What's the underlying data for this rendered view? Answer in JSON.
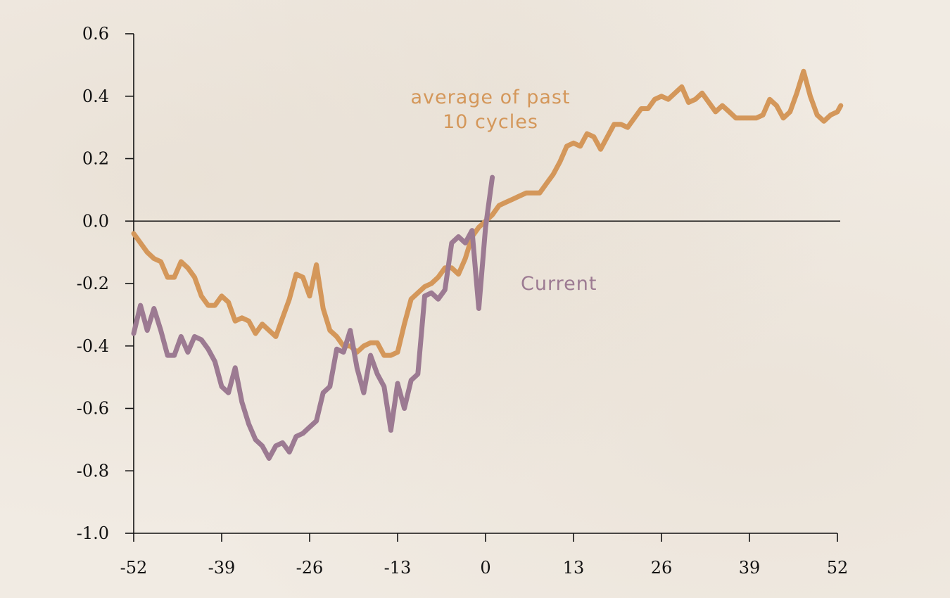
{
  "chart_data": {
    "type": "line",
    "title": "",
    "xlabel": "",
    "ylabel": "",
    "xlim": [
      -52,
      52
    ],
    "ylim": [
      -1.0,
      0.6
    ],
    "x_ticks": [
      "-52",
      "-39",
      "-26",
      "-13",
      "0",
      "13",
      "26",
      "39",
      "52"
    ],
    "y_ticks": [
      "0.6",
      "0.4",
      "0.2",
      "0.0",
      "-0.2",
      "-0.4",
      "-0.6",
      "-0.8",
      "-1.0"
    ],
    "series": [
      {
        "name": "average of past 10 cycles",
        "label_line1": "average of past",
        "label_line2": "10 cycles",
        "color": "#d4975a",
        "points": [
          [
            -52,
            -0.04
          ],
          [
            -51,
            -0.07
          ],
          [
            -50,
            -0.1
          ],
          [
            -49,
            -0.12
          ],
          [
            -48,
            -0.13
          ],
          [
            -47,
            -0.18
          ],
          [
            -46,
            -0.18
          ],
          [
            -45,
            -0.13
          ],
          [
            -44,
            -0.15
          ],
          [
            -43,
            -0.18
          ],
          [
            -42,
            -0.24
          ],
          [
            -41,
            -0.27
          ],
          [
            -40,
            -0.27
          ],
          [
            -39,
            -0.24
          ],
          [
            -38,
            -0.26
          ],
          [
            -37,
            -0.32
          ],
          [
            -36,
            -0.31
          ],
          [
            -35,
            -0.32
          ],
          [
            -34,
            -0.36
          ],
          [
            -33,
            -0.33
          ],
          [
            -32,
            -0.35
          ],
          [
            -31,
            -0.37
          ],
          [
            -30,
            -0.31
          ],
          [
            -29,
            -0.25
          ],
          [
            -28,
            -0.17
          ],
          [
            -27,
            -0.18
          ],
          [
            -26,
            -0.24
          ],
          [
            -25,
            -0.14
          ],
          [
            -24,
            -0.28
          ],
          [
            -23,
            -0.35
          ],
          [
            -22,
            -0.37
          ],
          [
            -21,
            -0.4
          ],
          [
            -20,
            -0.4
          ],
          [
            -19,
            -0.42
          ],
          [
            -18,
            -0.4
          ],
          [
            -17,
            -0.39
          ],
          [
            -16,
            -0.39
          ],
          [
            -15,
            -0.43
          ],
          [
            -14,
            -0.43
          ],
          [
            -13,
            -0.42
          ],
          [
            -12,
            -0.33
          ],
          [
            -11,
            -0.25
          ],
          [
            -10,
            -0.23
          ],
          [
            -9,
            -0.21
          ],
          [
            -8,
            -0.2
          ],
          [
            -7,
            -0.18
          ],
          [
            -6,
            -0.15
          ],
          [
            -5,
            -0.15
          ],
          [
            -4,
            -0.17
          ],
          [
            -3,
            -0.12
          ],
          [
            -2,
            -0.05
          ],
          [
            -1,
            -0.02
          ],
          [
            0,
            0.0
          ],
          [
            1,
            0.02
          ],
          [
            2,
            0.05
          ],
          [
            3,
            0.06
          ],
          [
            4,
            0.07
          ],
          [
            5,
            0.08
          ],
          [
            6,
            0.09
          ],
          [
            7,
            0.09
          ],
          [
            8,
            0.09
          ],
          [
            9,
            0.12
          ],
          [
            10,
            0.15
          ],
          [
            11,
            0.19
          ],
          [
            12,
            0.24
          ],
          [
            13,
            0.25
          ],
          [
            14,
            0.24
          ],
          [
            15,
            0.28
          ],
          [
            16,
            0.27
          ],
          [
            17,
            0.23
          ],
          [
            18,
            0.27
          ],
          [
            19,
            0.31
          ],
          [
            20,
            0.31
          ],
          [
            21,
            0.3
          ],
          [
            22,
            0.33
          ],
          [
            23,
            0.36
          ],
          [
            24,
            0.36
          ],
          [
            25,
            0.39
          ],
          [
            26,
            0.4
          ],
          [
            27,
            0.39
          ],
          [
            28,
            0.41
          ],
          [
            29,
            0.43
          ],
          [
            30,
            0.38
          ],
          [
            31,
            0.39
          ],
          [
            32,
            0.41
          ],
          [
            33,
            0.38
          ],
          [
            34,
            0.35
          ],
          [
            35,
            0.37
          ],
          [
            36,
            0.35
          ],
          [
            37,
            0.33
          ],
          [
            38,
            0.33
          ],
          [
            39,
            0.33
          ],
          [
            40,
            0.33
          ],
          [
            41,
            0.34
          ],
          [
            42,
            0.39
          ],
          [
            43,
            0.37
          ],
          [
            44,
            0.33
          ],
          [
            45,
            0.35
          ],
          [
            46,
            0.41
          ],
          [
            47,
            0.48
          ],
          [
            48,
            0.4
          ],
          [
            49,
            0.34
          ],
          [
            50,
            0.32
          ],
          [
            51,
            0.34
          ],
          [
            52,
            0.35
          ],
          [
            52.5,
            0.37
          ]
        ]
      },
      {
        "name": "Current",
        "label_line1": "Current",
        "color": "#9c7a92",
        "points": [
          [
            -52,
            -0.36
          ],
          [
            -51,
            -0.27
          ],
          [
            -50,
            -0.35
          ],
          [
            -49,
            -0.28
          ],
          [
            -48,
            -0.35
          ],
          [
            -47,
            -0.43
          ],
          [
            -46,
            -0.43
          ],
          [
            -45,
            -0.37
          ],
          [
            -44,
            -0.42
          ],
          [
            -43,
            -0.37
          ],
          [
            -42,
            -0.38
          ],
          [
            -41,
            -0.41
          ],
          [
            -40,
            -0.45
          ],
          [
            -39,
            -0.53
          ],
          [
            -38,
            -0.55
          ],
          [
            -37,
            -0.47
          ],
          [
            -36,
            -0.58
          ],
          [
            -35,
            -0.65
          ],
          [
            -34,
            -0.7
          ],
          [
            -33,
            -0.72
          ],
          [
            -32,
            -0.76
          ],
          [
            -31,
            -0.72
          ],
          [
            -30,
            -0.71
          ],
          [
            -29,
            -0.74
          ],
          [
            -28,
            -0.69
          ],
          [
            -27,
            -0.68
          ],
          [
            -26,
            -0.66
          ],
          [
            -25,
            -0.64
          ],
          [
            -24,
            -0.55
          ],
          [
            -23,
            -0.53
          ],
          [
            -22,
            -0.41
          ],
          [
            -21,
            -0.42
          ],
          [
            -20,
            -0.35
          ],
          [
            -19,
            -0.47
          ],
          [
            -18,
            -0.55
          ],
          [
            -17,
            -0.43
          ],
          [
            -16,
            -0.49
          ],
          [
            -15,
            -0.53
          ],
          [
            -14,
            -0.67
          ],
          [
            -13,
            -0.52
          ],
          [
            -12,
            -0.6
          ],
          [
            -11,
            -0.51
          ],
          [
            -10,
            -0.49
          ],
          [
            -9,
            -0.24
          ],
          [
            -8,
            -0.23
          ],
          [
            -7,
            -0.25
          ],
          [
            -6,
            -0.22
          ],
          [
            -5,
            -0.07
          ],
          [
            -4,
            -0.05
          ],
          [
            -3,
            -0.07
          ],
          [
            -2,
            -0.03
          ],
          [
            -1,
            -0.28
          ],
          [
            0,
            -0.02
          ],
          [
            1,
            0.14
          ]
        ]
      }
    ],
    "zero_line": 0.0,
    "grid": false
  }
}
